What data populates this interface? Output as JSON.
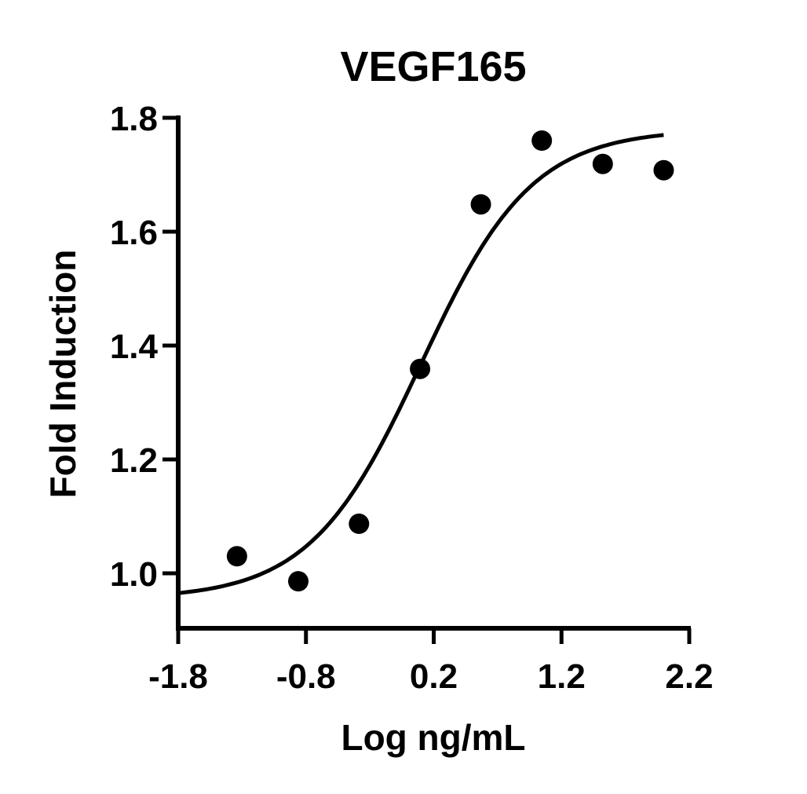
{
  "chart_data": {
    "type": "scatter",
    "title": "VEGF165",
    "xlabel": "Log ng/mL",
    "ylabel": "Fold Induction",
    "xlim": [
      -1.8,
      2.2
    ],
    "ylim": [
      0.9,
      1.8
    ],
    "x_ticks": [
      -1.8,
      -0.8,
      0.2,
      1.2,
      2.2
    ],
    "x_tick_labels": [
      "-1.8",
      "-0.8",
      "0.2",
      "1.2",
      "2.2"
    ],
    "y_ticks": [
      1.0,
      1.2,
      1.4,
      1.6,
      1.8
    ],
    "y_tick_labels": [
      "1.0",
      "1.2",
      "1.4",
      "1.6",
      "1.8"
    ],
    "grid": false,
    "legend": null,
    "series": [
      {
        "name": "VEGF165",
        "marker": "filled-circle",
        "x": [
          -1.34,
          -0.86,
          -0.385,
          0.093,
          0.569,
          1.046,
          1.523,
          2.0
        ],
        "y": [
          1.03,
          0.986,
          1.087,
          1.359,
          1.648,
          1.76,
          1.719,
          1.708
        ]
      }
    ],
    "fit_curve": {
      "model": "4PL",
      "bottom": 0.955,
      "top": 1.78,
      "logEC50": 0.1,
      "hill": 1.0,
      "x_range": [
        -1.8,
        2.0
      ]
    },
    "colors": {
      "ink": "#000000",
      "background": "#ffffff"
    }
  }
}
